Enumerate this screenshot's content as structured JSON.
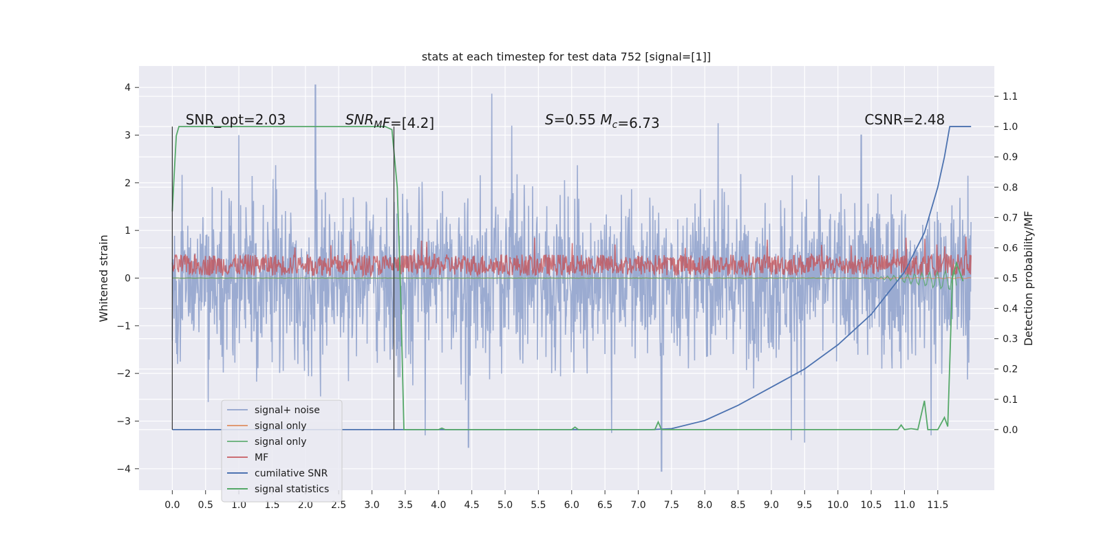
{
  "chart_data": {
    "type": "line",
    "title": "stats at each timestep for test data 752 [signal=[1]]",
    "xlabel": "",
    "ylabel_left": "Whitened strain",
    "ylabel_right": "Detection probability/MF",
    "xlim": [
      -0.5,
      12.35
    ],
    "ylim_left": [
      -4.45,
      4.45
    ],
    "ylim_right": [
      -0.2,
      1.2
    ],
    "x_ticks": [
      "0.0",
      "0.5",
      "1.0",
      "1.5",
      "2.0",
      "2.5",
      "3.0",
      "3.5",
      "4.0",
      "4.5",
      "5.0",
      "5.5",
      "6.0",
      "6.5",
      "7.0",
      "7.5",
      "8.0",
      "8.5",
      "9.0",
      "9.5",
      "10.0",
      "10.5",
      "11.0",
      "11.5"
    ],
    "y_ticks_left": [
      "−4",
      "−3",
      "−2",
      "−1",
      "0",
      "1",
      "2",
      "3",
      "4"
    ],
    "y_ticks_right": [
      "0.0",
      "0.1",
      "0.2",
      "0.3",
      "0.4",
      "0.5",
      "0.6",
      "0.7",
      "0.8",
      "0.9",
      "1.0",
      "1.1"
    ],
    "grid": true,
    "legend_position": "lower-left",
    "colors": {
      "background": "#eaeaf2",
      "grid": "#ffffff",
      "noise": "#8da0cb",
      "signal_orange": "#dd8452",
      "signal_green": "#55a868",
      "mf_red": "#c44e52",
      "csnr_blue": "#4c72b0",
      "stat_green": "#55a868",
      "marker_line": "#333333"
    },
    "annotations": [
      {
        "text_parts": [
          {
            "t": "SNR_opt=2.03"
          }
        ],
        "x": 0.2,
        "y_right": 1.0
      },
      {
        "text_parts": [
          {
            "t": "SNR",
            "italic": true
          },
          {
            "t": "M",
            "italic": true,
            "sub": true
          },
          {
            "t": "F",
            "italic": true
          },
          {
            "t": "=[4.2]"
          }
        ],
        "x": 2.6,
        "y_right": 1.0
      },
      {
        "text_parts": [
          {
            "t": "S",
            "italic": true
          },
          {
            "t": "=0.55   "
          },
          {
            "t": "M",
            "italic": true
          },
          {
            "t": "c",
            "italic": true,
            "sub": true
          },
          {
            "t": "=6.73"
          }
        ],
        "x": 5.6,
        "y_right": 1.0
      },
      {
        "text_parts": [
          {
            "t": "CSNR=2.48"
          }
        ],
        "x": 10.4,
        "y_right": 1.0
      }
    ],
    "vertical_markers_x": [
      0.0,
      3.33
    ],
    "series": [
      {
        "name": "signal+ noise",
        "axis": "left",
        "style": "noise",
        "x_range": [
          0,
          12
        ],
        "envelope": {
          "typical_min": -1.9,
          "typical_max": 1.9,
          "spikes": [
            [
              2.15,
              4.05
            ],
            [
              4.8,
              3.87
            ],
            [
              7.35,
              -4.05
            ],
            [
              4.45,
              -3.55
            ],
            [
              9.5,
              -3.45
            ],
            [
              9.3,
              -3.4
            ],
            [
              8.2,
              3.25
            ],
            [
              6.6,
              -3.25
            ],
            [
              3.8,
              -3.3
            ],
            [
              10.35,
              3.0
            ],
            [
              11.4,
              -3.3
            ],
            [
              1.0,
              3.0
            ],
            [
              5.1,
              3.2
            ]
          ]
        }
      },
      {
        "name": "signal only",
        "axis": "left",
        "style": "signal_orange",
        "x_range": [
          0,
          12
        ],
        "note": "near-zero waveform"
      },
      {
        "name": "signal only",
        "axis": "left",
        "style": "signal_green",
        "x_range": [
          0,
          12
        ],
        "points": [
          [
            0,
            0
          ],
          [
            10.5,
            0
          ],
          [
            11.0,
            -0.03
          ],
          [
            11.4,
            -0.1
          ],
          [
            11.6,
            -0.2
          ],
          [
            11.65,
            0.1
          ],
          [
            11.7,
            -0.25
          ],
          [
            11.78,
            0
          ]
        ]
      },
      {
        "name": "MF",
        "axis": "left",
        "style": "mf_red",
        "x_range": [
          0,
          12
        ],
        "band": [
          0.05,
          0.5
        ],
        "spike_max": 0.9
      },
      {
        "name": "cumilative SNR",
        "axis": "right",
        "style": "csnr_blue",
        "points": [
          [
            0.0,
            0.0
          ],
          [
            7.2,
            0.0
          ],
          [
            7.5,
            0.003
          ],
          [
            8.0,
            0.03
          ],
          [
            8.5,
            0.08
          ],
          [
            9.0,
            0.14
          ],
          [
            9.5,
            0.2
          ],
          [
            10.0,
            0.28
          ],
          [
            10.5,
            0.38
          ],
          [
            11.0,
            0.52
          ],
          [
            11.3,
            0.65
          ],
          [
            11.5,
            0.8
          ],
          [
            11.6,
            0.9
          ],
          [
            11.68,
            1.0
          ],
          [
            12.0,
            1.0
          ]
        ]
      },
      {
        "name": "signal statistics",
        "axis": "right",
        "style": "stat_green",
        "points": [
          [
            0.0,
            0.72
          ],
          [
            0.03,
            0.85
          ],
          [
            0.06,
            0.97
          ],
          [
            0.1,
            1.0
          ],
          [
            3.2,
            1.0
          ],
          [
            3.3,
            0.99
          ],
          [
            3.38,
            0.8
          ],
          [
            3.43,
            0.45
          ],
          [
            3.48,
            0.0
          ],
          [
            4.0,
            0.0
          ],
          [
            4.05,
            0.005
          ],
          [
            4.1,
            0.0
          ],
          [
            6.0,
            0.0
          ],
          [
            6.05,
            0.008
          ],
          [
            6.1,
            0.0
          ],
          [
            7.25,
            0.0
          ],
          [
            7.3,
            0.025
          ],
          [
            7.35,
            0.0
          ],
          [
            10.9,
            0.0
          ],
          [
            10.95,
            0.015
          ],
          [
            11.0,
            0.0
          ],
          [
            11.1,
            0.003
          ],
          [
            11.2,
            0.0
          ],
          [
            11.3,
            0.095
          ],
          [
            11.35,
            0.0
          ],
          [
            11.5,
            0.0
          ],
          [
            11.6,
            0.04
          ],
          [
            11.65,
            0.01
          ],
          [
            11.72,
            0.5
          ],
          [
            11.78,
            0.55
          ],
          [
            11.88,
            0.49
          ]
        ]
      }
    ]
  }
}
